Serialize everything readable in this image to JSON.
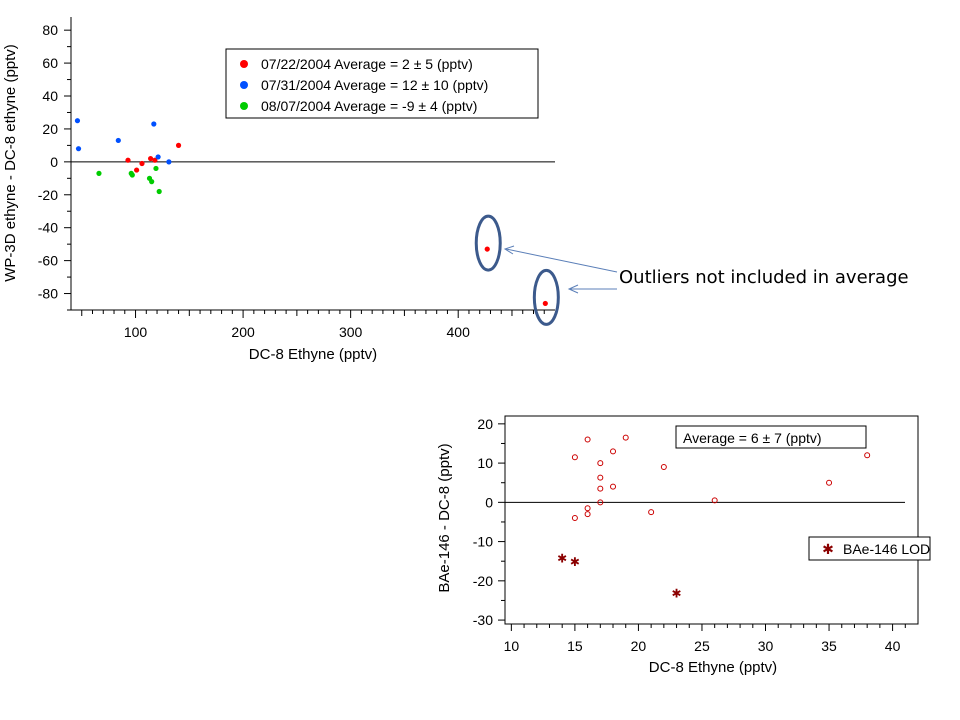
{
  "annotation": "Outliers not included in average",
  "chart_data": [
    {
      "type": "scatter",
      "xlabel": "DC-8 Ethyne (pptv)",
      "ylabel": "WP-3D ethyne  - DC-8 ethyne (pptv)",
      "xlim": [
        40,
        490
      ],
      "ylim": [
        -90,
        88
      ],
      "xticks": [
        100,
        200,
        300,
        400
      ],
      "yticks": [
        80,
        60,
        40,
        20,
        0,
        -20,
        -40,
        -60,
        -80
      ],
      "zero_line": true,
      "legend_position": "top-right",
      "series": [
        {
          "name": "07/22/2004 Average = 2 ± 5 (pptv)",
          "color": "#ff0000",
          "points": [
            [
              93,
              1
            ],
            [
              101,
              -5
            ],
            [
              106,
              -1
            ],
            [
              114,
              2
            ],
            [
              118,
              1
            ],
            [
              140,
              10
            ],
            [
              427,
              -53
            ],
            [
              481,
              -86
            ]
          ]
        },
        {
          "name": "07/31/2004 Average = 12 ± 10 (pptv)",
          "color": "#0050ff",
          "points": [
            [
              46,
              25
            ],
            [
              47,
              8
            ],
            [
              84,
              13
            ],
            [
              117,
              23
            ],
            [
              121,
              3
            ],
            [
              131,
              0
            ]
          ]
        },
        {
          "name": "08/07/2004 Average = -9 ± 4 (pptv)",
          "color": "#00cc00",
          "points": [
            [
              66,
              -7
            ],
            [
              96,
              -7
            ],
            [
              97,
              -8
            ],
            [
              113,
              -10
            ],
            [
              115,
              -12
            ],
            [
              119,
              -4
            ],
            [
              122,
              -18
            ]
          ]
        }
      ],
      "outliers": [
        [
          427,
          -53
        ],
        [
          481,
          -86
        ]
      ]
    },
    {
      "type": "scatter",
      "xlabel": "DC-8 Ethyne (pptv)",
      "ylabel": "BAe-146  - DC-8 (pptv)",
      "xlim": [
        9.5,
        42
      ],
      "ylim": [
        -31,
        22
      ],
      "xticks": [
        10,
        15,
        20,
        25,
        30,
        35,
        40
      ],
      "yticks": [
        20,
        10,
        0,
        -10,
        -20,
        -30
      ],
      "zero_line": true,
      "title_box": "Average = 6 ± 7 (pptv)",
      "series": [
        {
          "name": "",
          "color": "#cc0000",
          "marker": "open-circle",
          "points": [
            [
              15,
              11.5
            ],
            [
              16,
              16
            ],
            [
              17,
              10
            ],
            [
              17,
              6.3
            ],
            [
              17,
              3.5
            ],
            [
              17,
              0
            ],
            [
              18,
              13
            ],
            [
              18,
              4
            ],
            [
              19,
              16.5
            ],
            [
              22,
              9
            ],
            [
              16,
              -1.5
            ],
            [
              16,
              -3
            ],
            [
              15,
              -4
            ],
            [
              21,
              -2.5
            ],
            [
              26,
              0.5
            ],
            [
              35,
              5
            ],
            [
              38,
              12
            ]
          ]
        },
        {
          "name": "BAe-146 LOD",
          "color": "#8b0000",
          "marker": "asterisk",
          "points": [
            [
              14,
              -14
            ],
            [
              15,
              -15
            ],
            [
              23,
              -23
            ]
          ]
        }
      ]
    }
  ]
}
